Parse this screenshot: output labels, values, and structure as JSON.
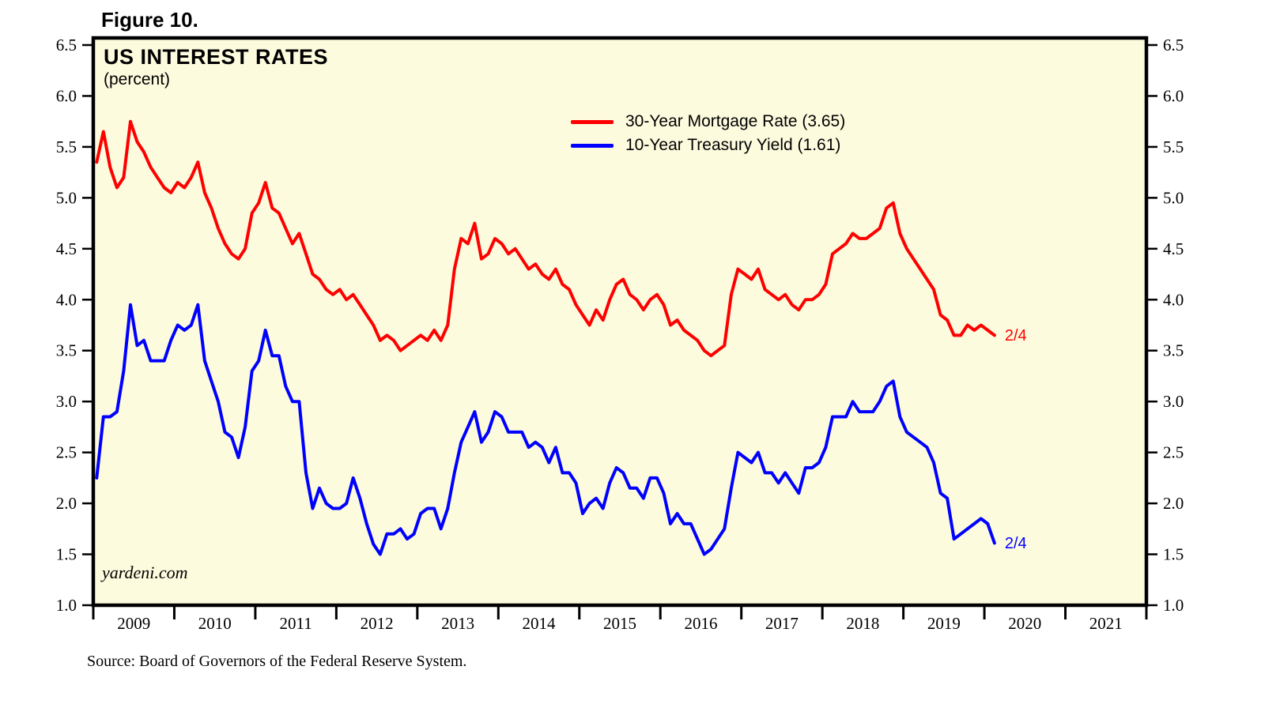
{
  "figure": {
    "label": "Figure 10."
  },
  "chart": {
    "title": "US INTEREST RATES",
    "subtitle": "(percent)",
    "watermark": "yardeni.com",
    "source": "Source: Board of Governors of the Federal Reserve System."
  },
  "legend": {
    "items": [
      {
        "label": "30-Year Mortgage Rate (3.65)",
        "color": "#FF0000"
      },
      {
        "label": "10-Year Treasury Yield (1.61)",
        "color": "#0000FF"
      }
    ]
  },
  "colors": {
    "plot_background": "#FDFBDE",
    "axis": "#000000",
    "mortgage": "#FF0000",
    "treasury": "#0000FF"
  },
  "chart_data": {
    "type": "line",
    "title": "US INTEREST RATES",
    "ylabel": "percent",
    "ylim": [
      1.0,
      6.5
    ],
    "ytick_step": 0.5,
    "x_years_shown": [
      "2009",
      "2010",
      "2011",
      "2012",
      "2013",
      "2014",
      "2015",
      "2016",
      "2017",
      "2018",
      "2019",
      "2020",
      "2021"
    ],
    "x_axis_span_years": [
      2009,
      2022
    ],
    "x_frequency": "monthly",
    "x_start": "2009-01",
    "x_end": "2020-02",
    "grid": false,
    "legend_position": "top-center",
    "series": [
      {
        "name": "30-Year Mortgage Rate",
        "color": "#FF0000",
        "last_value": 3.65,
        "end_label": "2/4",
        "values": [
          5.35,
          5.65,
          5.3,
          5.1,
          5.2,
          5.75,
          5.55,
          5.45,
          5.3,
          5.2,
          5.1,
          5.05,
          5.15,
          5.1,
          5.2,
          5.35,
          5.05,
          4.9,
          4.7,
          4.55,
          4.45,
          4.4,
          4.5,
          4.85,
          4.95,
          5.15,
          4.9,
          4.85,
          4.7,
          4.55,
          4.65,
          4.45,
          4.25,
          4.2,
          4.1,
          4.05,
          4.1,
          4.0,
          4.05,
          3.95,
          3.85,
          3.75,
          3.6,
          3.65,
          3.6,
          3.5,
          3.55,
          3.6,
          3.65,
          3.6,
          3.7,
          3.6,
          3.75,
          4.3,
          4.6,
          4.55,
          4.75,
          4.4,
          4.45,
          4.6,
          4.55,
          4.45,
          4.5,
          4.4,
          4.3,
          4.35,
          4.25,
          4.2,
          4.3,
          4.15,
          4.1,
          3.95,
          3.85,
          3.75,
          3.9,
          3.8,
          4.0,
          4.15,
          4.2,
          4.05,
          4.0,
          3.9,
          4.0,
          4.05,
          3.95,
          3.75,
          3.8,
          3.7,
          3.65,
          3.6,
          3.5,
          3.45,
          3.5,
          3.55,
          4.05,
          4.3,
          4.25,
          4.2,
          4.3,
          4.1,
          4.05,
          4.0,
          4.05,
          3.95,
          3.9,
          4.0,
          4.0,
          4.05,
          4.15,
          4.45,
          4.5,
          4.55,
          4.65,
          4.6,
          4.6,
          4.65,
          4.7,
          4.9,
          4.95,
          4.65,
          4.5,
          4.4,
          4.3,
          4.2,
          4.1,
          3.85,
          3.8,
          3.65,
          3.65,
          3.75,
          3.7,
          3.75,
          3.7,
          3.65
        ]
      },
      {
        "name": "10-Year Treasury Yield",
        "color": "#0000FF",
        "last_value": 1.61,
        "end_label": "2/4",
        "values": [
          2.25,
          2.85,
          2.85,
          2.9,
          3.3,
          3.95,
          3.55,
          3.6,
          3.4,
          3.4,
          3.4,
          3.6,
          3.75,
          3.7,
          3.75,
          3.95,
          3.4,
          3.2,
          3.0,
          2.7,
          2.65,
          2.45,
          2.75,
          3.3,
          3.4,
          3.7,
          3.45,
          3.45,
          3.15,
          3.0,
          3.0,
          2.3,
          1.95,
          2.15,
          2.0,
          1.95,
          1.95,
          2.0,
          2.25,
          2.05,
          1.8,
          1.6,
          1.5,
          1.7,
          1.7,
          1.75,
          1.65,
          1.7,
          1.9,
          1.95,
          1.95,
          1.75,
          1.95,
          2.3,
          2.6,
          2.75,
          2.9,
          2.6,
          2.7,
          2.9,
          2.85,
          2.7,
          2.7,
          2.7,
          2.55,
          2.6,
          2.55,
          2.4,
          2.55,
          2.3,
          2.3,
          2.2,
          1.9,
          2.0,
          2.05,
          1.95,
          2.2,
          2.35,
          2.3,
          2.15,
          2.15,
          2.05,
          2.25,
          2.25,
          2.1,
          1.8,
          1.9,
          1.8,
          1.8,
          1.65,
          1.5,
          1.55,
          1.65,
          1.75,
          2.15,
          2.5,
          2.45,
          2.4,
          2.5,
          2.3,
          2.3,
          2.2,
          2.3,
          2.2,
          2.1,
          2.35,
          2.35,
          2.4,
          2.55,
          2.85,
          2.85,
          2.85,
          3.0,
          2.9,
          2.9,
          2.9,
          3.0,
          3.15,
          3.2,
          2.85,
          2.7,
          2.65,
          2.6,
          2.55,
          2.4,
          2.1,
          2.05,
          1.65,
          1.7,
          1.75,
          1.8,
          1.85,
          1.8,
          1.61
        ]
      }
    ]
  }
}
